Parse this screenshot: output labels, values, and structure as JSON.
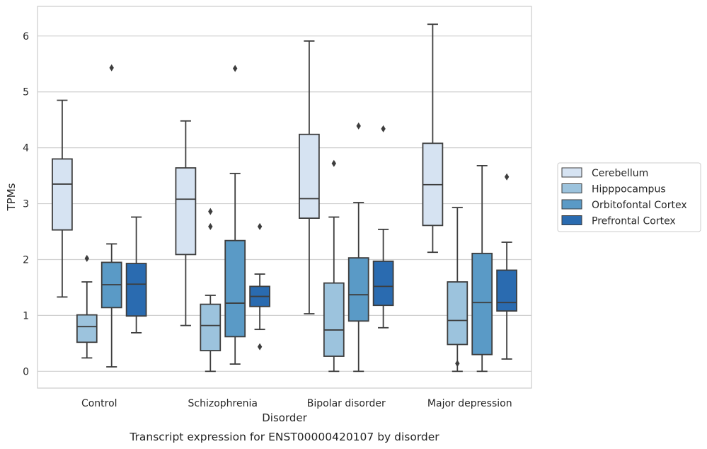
{
  "chart_data": {
    "type": "box",
    "caption": "Transcript expression for ENST00000420107 by disorder",
    "xlabel": "Disorder",
    "ylabel": "TPMs",
    "ylim": [
      -0.3,
      6.53
    ],
    "yticks": [
      0,
      1,
      2,
      3,
      4,
      5,
      6
    ],
    "grid": "horizontal",
    "legend_position": "right",
    "categories": [
      "Control",
      "Schizophrenia",
      "Bipolar disorder",
      "Major depression"
    ],
    "series": [
      {
        "name": "Cerebellum",
        "color": "#d6e3f2",
        "boxes": [
          {
            "whisker_low": 1.33,
            "q1": 2.53,
            "median": 3.35,
            "q3": 3.8,
            "whisker_high": 4.85,
            "outliers": []
          },
          {
            "whisker_low": 0.82,
            "q1": 2.09,
            "median": 3.08,
            "q3": 3.64,
            "whisker_high": 4.48,
            "outliers": []
          },
          {
            "whisker_low": 1.03,
            "q1": 2.74,
            "median": 3.09,
            "q3": 4.24,
            "whisker_high": 5.91,
            "outliers": []
          },
          {
            "whisker_low": 2.13,
            "q1": 2.61,
            "median": 3.34,
            "q3": 4.08,
            "whisker_high": 6.21,
            "outliers": []
          }
        ]
      },
      {
        "name": "Hipppocampus",
        "color": "#9cc3dd",
        "boxes": [
          {
            "whisker_low": 0.24,
            "q1": 0.52,
            "median": 0.8,
            "q3": 1.01,
            "whisker_high": 1.6,
            "outliers": [
              2.02
            ]
          },
          {
            "whisker_low": 0.0,
            "q1": 0.37,
            "median": 0.82,
            "q3": 1.2,
            "whisker_high": 1.36,
            "outliers": [
              2.59,
              2.86
            ]
          },
          {
            "whisker_low": 0.0,
            "q1": 0.27,
            "median": 0.74,
            "q3": 1.58,
            "whisker_high": 2.76,
            "outliers": [
              3.72
            ]
          },
          {
            "whisker_low": 0.0,
            "q1": 0.48,
            "median": 0.91,
            "q3": 1.6,
            "whisker_high": 2.93,
            "outliers": [
              0.14
            ]
          }
        ]
      },
      {
        "name": "Orbitofontal Cortex",
        "color": "#5a9ac6",
        "boxes": [
          {
            "whisker_low": 0.08,
            "q1": 1.14,
            "median": 1.55,
            "q3": 1.95,
            "whisker_high": 2.28,
            "outliers": [
              5.43
            ]
          },
          {
            "whisker_low": 0.13,
            "q1": 0.62,
            "median": 1.22,
            "q3": 2.34,
            "whisker_high": 3.54,
            "outliers": [
              5.42
            ]
          },
          {
            "whisker_low": 0.0,
            "q1": 0.9,
            "median": 1.37,
            "q3": 2.03,
            "whisker_high": 3.02,
            "outliers": [
              4.39
            ]
          },
          {
            "whisker_low": 0.0,
            "q1": 0.3,
            "median": 1.23,
            "q3": 2.11,
            "whisker_high": 3.68,
            "outliers": []
          }
        ]
      },
      {
        "name": "Prefrontal Cortex",
        "color": "#2a6bb0",
        "boxes": [
          {
            "whisker_low": 0.69,
            "q1": 0.99,
            "median": 1.56,
            "q3": 1.93,
            "whisker_high": 2.76,
            "outliers": []
          },
          {
            "whisker_low": 0.75,
            "q1": 1.16,
            "median": 1.34,
            "q3": 1.52,
            "whisker_high": 1.74,
            "outliers": [
              2.59,
              0.44
            ]
          },
          {
            "whisker_low": 0.78,
            "q1": 1.18,
            "median": 1.52,
            "q3": 1.97,
            "whisker_high": 2.54,
            "outliers": [
              4.34
            ]
          },
          {
            "whisker_low": 0.22,
            "q1": 1.08,
            "median": 1.23,
            "q3": 1.81,
            "whisker_high": 2.31,
            "outliers": [
              3.48
            ]
          }
        ]
      }
    ]
  }
}
